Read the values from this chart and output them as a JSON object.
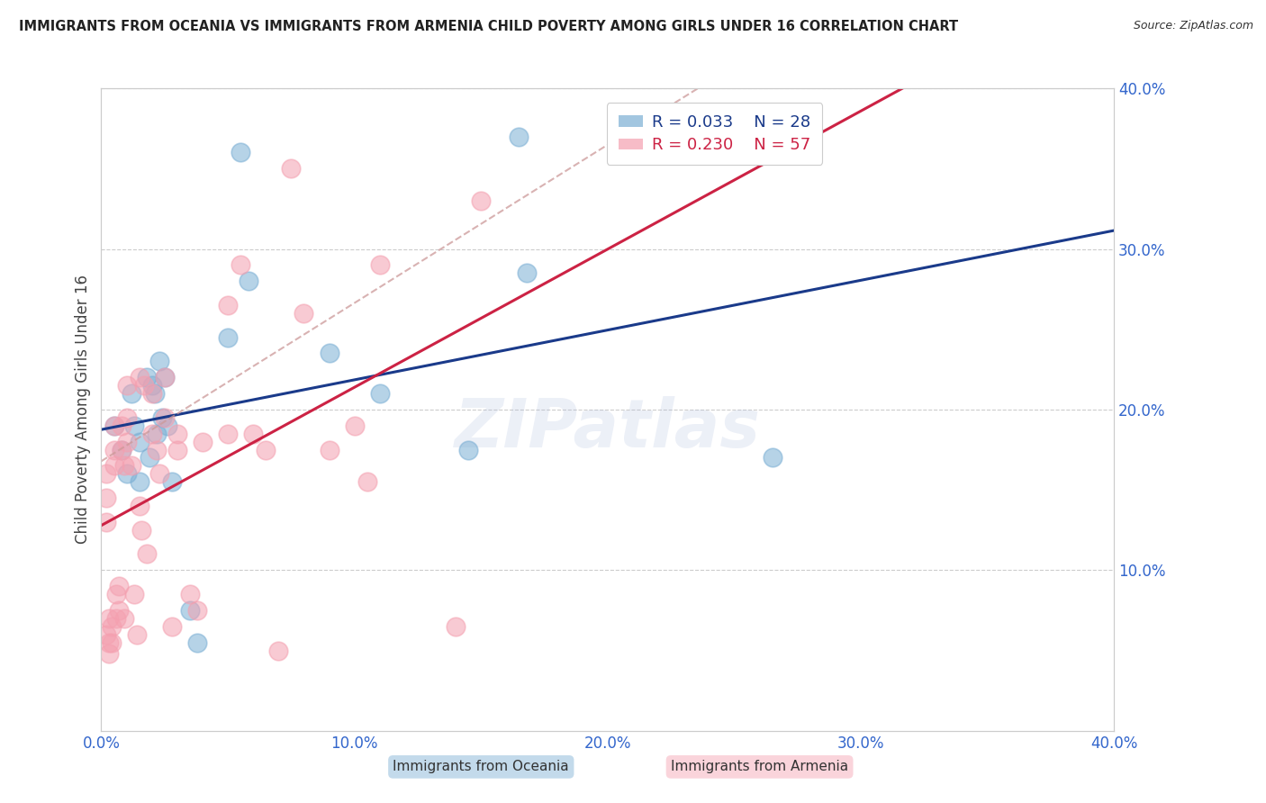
{
  "title": "IMMIGRANTS FROM OCEANIA VS IMMIGRANTS FROM ARMENIA CHILD POVERTY AMONG GIRLS UNDER 16 CORRELATION CHART",
  "source": "Source: ZipAtlas.com",
  "ylabel": "Child Poverty Among Girls Under 16",
  "xlim": [
    0.0,
    0.4
  ],
  "ylim": [
    0.0,
    0.4
  ],
  "xticks": [
    0.0,
    0.1,
    0.2,
    0.3,
    0.4
  ],
  "yticks": [
    0.1,
    0.2,
    0.3,
    0.4
  ],
  "xticklabels": [
    "0.0%",
    "10.0%",
    "20.0%",
    "30.0%",
    "40.0%"
  ],
  "yticklabels": [
    "10.0%",
    "20.0%",
    "30.0%",
    "40.0%"
  ],
  "oceania_color": "#7BAFD4",
  "armenia_color": "#F4A0B0",
  "oceania_R": 0.033,
  "oceania_N": 28,
  "armenia_R": 0.23,
  "armenia_N": 57,
  "legend_label_oceania": "Immigrants from Oceania",
  "legend_label_armenia": "Immigrants from Armenia",
  "watermark": "ZIPatlas",
  "oceania_line_color": "#1A3A8A",
  "armenia_line_color": "#CC2244",
  "dashed_line_color": "#CC9999",
  "oceania_x": [
    0.005,
    0.008,
    0.01,
    0.012,
    0.013,
    0.015,
    0.015,
    0.018,
    0.019,
    0.02,
    0.021,
    0.022,
    0.023,
    0.024,
    0.025,
    0.026,
    0.028,
    0.035,
    0.038,
    0.05,
    0.055,
    0.058,
    0.09,
    0.11,
    0.145,
    0.165,
    0.168,
    0.265
  ],
  "oceania_y": [
    0.19,
    0.175,
    0.16,
    0.21,
    0.19,
    0.18,
    0.155,
    0.22,
    0.17,
    0.215,
    0.21,
    0.185,
    0.23,
    0.195,
    0.22,
    0.19,
    0.155,
    0.075,
    0.055,
    0.245,
    0.36,
    0.28,
    0.235,
    0.21,
    0.175,
    0.37,
    0.285,
    0.17
  ],
  "armenia_x": [
    0.002,
    0.002,
    0.002,
    0.002,
    0.003,
    0.003,
    0.003,
    0.004,
    0.004,
    0.005,
    0.005,
    0.005,
    0.006,
    0.006,
    0.007,
    0.007,
    0.008,
    0.008,
    0.009,
    0.009,
    0.01,
    0.01,
    0.01,
    0.012,
    0.013,
    0.014,
    0.015,
    0.015,
    0.016,
    0.017,
    0.018,
    0.02,
    0.02,
    0.022,
    0.023,
    0.025,
    0.025,
    0.028,
    0.03,
    0.03,
    0.035,
    0.038,
    0.04,
    0.05,
    0.05,
    0.055,
    0.06,
    0.065,
    0.07,
    0.075,
    0.08,
    0.09,
    0.1,
    0.105,
    0.11,
    0.14,
    0.15
  ],
  "armenia_y": [
    0.16,
    0.145,
    0.13,
    0.06,
    0.07,
    0.055,
    0.048,
    0.065,
    0.055,
    0.19,
    0.175,
    0.165,
    0.085,
    0.07,
    0.09,
    0.075,
    0.19,
    0.175,
    0.165,
    0.07,
    0.215,
    0.195,
    0.18,
    0.165,
    0.085,
    0.06,
    0.22,
    0.14,
    0.125,
    0.215,
    0.11,
    0.21,
    0.185,
    0.175,
    0.16,
    0.22,
    0.195,
    0.065,
    0.185,
    0.175,
    0.085,
    0.075,
    0.18,
    0.265,
    0.185,
    0.29,
    0.185,
    0.175,
    0.05,
    0.35,
    0.26,
    0.175,
    0.19,
    0.155,
    0.29,
    0.065,
    0.33
  ],
  "bg_color": "#FFFFFF",
  "grid_color": "#CCCCCC",
  "title_color": "#222222",
  "tick_color_blue": "#3366CC",
  "ylabel_color": "#444444"
}
